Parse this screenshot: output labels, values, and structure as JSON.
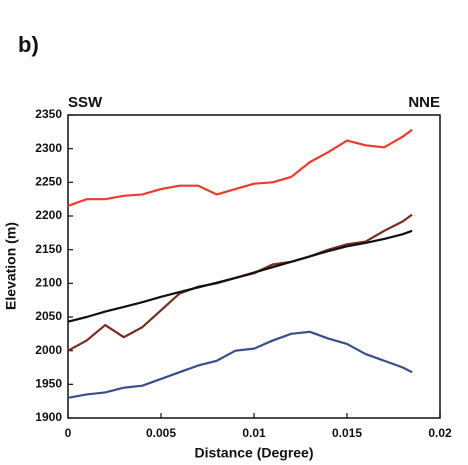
{
  "chart_data": {
    "type": "line",
    "title": "b)",
    "left_label": "SSW",
    "right_label": "NNE",
    "xlabel": "Distance (Degree)",
    "ylabel": "Elevation (m)",
    "x": [
      0,
      0.001,
      0.002,
      0.003,
      0.004,
      0.005,
      0.006,
      0.007,
      0.008,
      0.009,
      0.01,
      0.011,
      0.012,
      0.013,
      0.014,
      0.015,
      0.016,
      0.017,
      0.018,
      0.0185
    ],
    "series": [
      {
        "color": "#ee3b2b",
        "values": [
          2215,
          2225,
          2225,
          2230,
          2232,
          2240,
          2245,
          2245,
          2232,
          2240,
          2248,
          2250,
          2258,
          2280,
          2295,
          2312,
          2305,
          2302,
          2318,
          2328
        ]
      },
      {
        "color": "#7b2a22",
        "values": [
          2000,
          2015,
          2038,
          2020,
          2035,
          2060,
          2085,
          2095,
          2100,
          2108,
          2115,
          2128,
          2132,
          2140,
          2150,
          2158,
          2162,
          2178,
          2192,
          2202
        ]
      },
      {
        "color": "#111111",
        "values": [
          2043,
          2050,
          2058,
          2065,
          2072,
          2080,
          2087,
          2094,
          2101,
          2108,
          2116,
          2124,
          2132,
          2140,
          2148,
          2155,
          2160,
          2166,
          2173,
          2178
        ]
      },
      {
        "color": "#3a4e8c",
        "values": [
          1930,
          1935,
          1938,
          1945,
          1948,
          1958,
          1968,
          1978,
          1985,
          2000,
          2003,
          2015,
          2025,
          2028,
          2018,
          2010,
          1995,
          1985,
          1975,
          1968
        ]
      }
    ],
    "xlim": [
      0,
      0.02
    ],
    "xticks": [
      0,
      0.005,
      0.01,
      0.015,
      0.02
    ],
    "ylim": [
      1900,
      2350
    ],
    "yticks": [
      1900,
      1950,
      2000,
      2050,
      2100,
      2150,
      2200,
      2250,
      2300,
      2350
    ]
  }
}
